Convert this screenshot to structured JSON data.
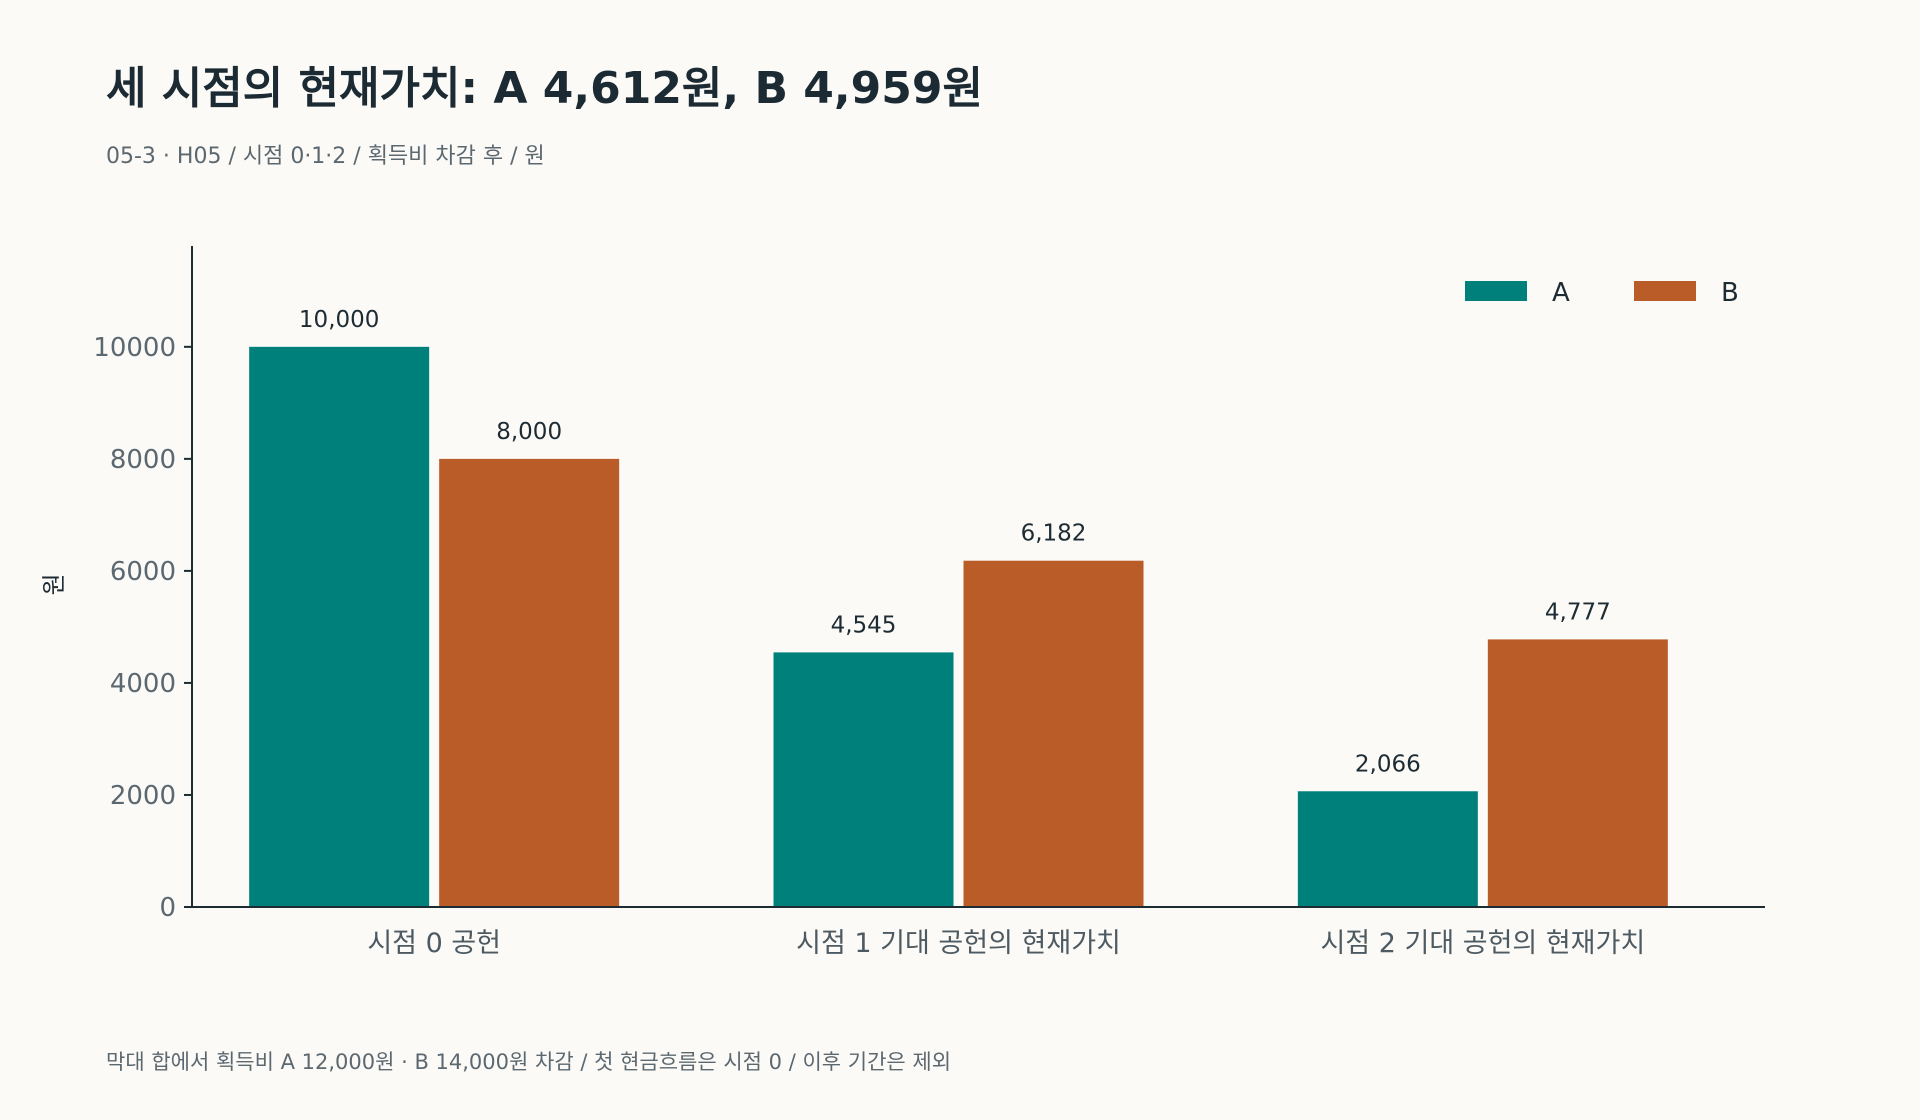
{
  "header": {
    "title": "세 시점의 현재가치: A 4,612원, B 4,959원",
    "subtitle": "05-3 · H05 / 시점 0·1·2 / 획득비 차감 후 / 원"
  },
  "footer": {
    "note": "막대 합에서 획득비 A 12,000원 · B 14,000원 차감 / 첫 현금흐름은 시점 0 / 이후 기간은 제외"
  },
  "colors": {
    "A": "#00807a",
    "B": "#b95c28",
    "axis": "#1d2b33"
  },
  "chart_data": {
    "type": "bar",
    "categories": [
      "시점 0 공헌",
      "시점 1 기대 공헌의 현재가치",
      "시점 2 기대 공헌의 현재가치"
    ],
    "series": [
      {
        "name": "A",
        "values": [
          10000,
          4545,
          2066
        ],
        "labels": [
          "10,000",
          "4,545",
          "2,066"
        ]
      },
      {
        "name": "B",
        "values": [
          8000,
          6182,
          4777
        ],
        "labels": [
          "8,000",
          "6,182",
          "4,777"
        ]
      }
    ],
    "title": "세 시점의 현재가치: A 4,612원, B 4,959원",
    "xlabel": "",
    "ylabel": "원",
    "ylim": [
      0,
      11800
    ],
    "yticks": [
      0,
      2000,
      4000,
      6000,
      8000,
      10000
    ],
    "grid": false,
    "legend": "top-right"
  }
}
